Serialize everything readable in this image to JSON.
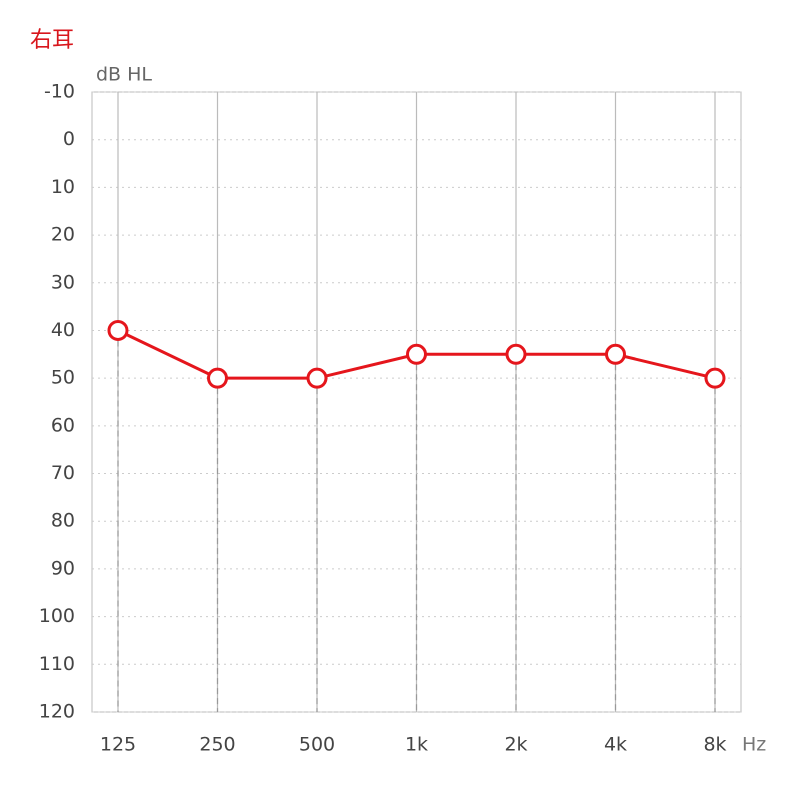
{
  "chart_data": {
    "type": "line",
    "title": "右耳",
    "y_label": "dB HL",
    "x_label": "Hz",
    "categories": [
      "125",
      "250",
      "500",
      "1k",
      "2k",
      "4k",
      "8k"
    ],
    "series": [
      {
        "name": "右耳",
        "color": "#e5161c",
        "values": [
          40,
          50,
          50,
          45,
          45,
          45,
          50
        ]
      }
    ],
    "ylim": [
      -10,
      120
    ],
    "y_inverted": true,
    "yticks": [
      -10,
      0,
      10,
      20,
      30,
      40,
      50,
      60,
      70,
      80,
      90,
      100,
      110,
      120
    ],
    "grid": true
  }
}
